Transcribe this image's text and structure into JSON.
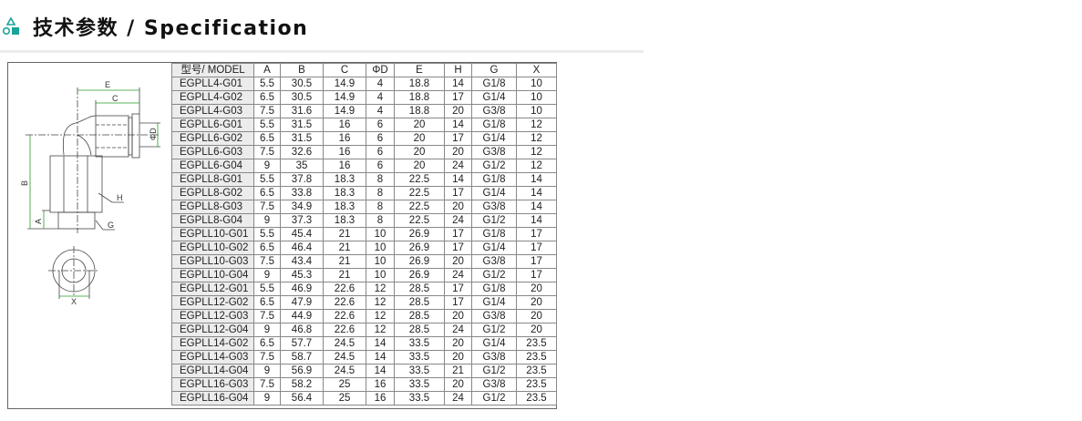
{
  "header": {
    "title": "技术参数 / Specification",
    "icon": "shapes-icon",
    "accent": "#1aa39a"
  },
  "table": {
    "columns": [
      "型号/ MODEL",
      "A",
      "B",
      "C",
      "ΦD",
      "E",
      "H",
      "G",
      "X"
    ],
    "rows": [
      [
        "EGPLL4-G01",
        "5.5",
        "30.5",
        "14.9",
        "4",
        "18.8",
        "14",
        "G1/8",
        "10"
      ],
      [
        "EGPLL4-G02",
        "6.5",
        "30.5",
        "14.9",
        "4",
        "18.8",
        "17",
        "G1/4",
        "10"
      ],
      [
        "EGPLL4-G03",
        "7.5",
        "31.6",
        "14.9",
        "4",
        "18.8",
        "20",
        "G3/8",
        "10"
      ],
      [
        "EGPLL6-G01",
        "5.5",
        "31.5",
        "16",
        "6",
        "20",
        "14",
        "G1/8",
        "12"
      ],
      [
        "EGPLL6-G02",
        "6.5",
        "31.5",
        "16",
        "6",
        "20",
        "17",
        "G1/4",
        "12"
      ],
      [
        "EGPLL6-G03",
        "7.5",
        "32.6",
        "16",
        "6",
        "20",
        "20",
        "G3/8",
        "12"
      ],
      [
        "EGPLL6-G04",
        "9",
        "35",
        "16",
        "6",
        "20",
        "24",
        "G1/2",
        "12"
      ],
      [
        "EGPLL8-G01",
        "5.5",
        "37.8",
        "18.3",
        "8",
        "22.5",
        "14",
        "G1/8",
        "14"
      ],
      [
        "EGPLL8-G02",
        "6.5",
        "33.8",
        "18.3",
        "8",
        "22.5",
        "17",
        "G1/4",
        "14"
      ],
      [
        "EGPLL8-G03",
        "7.5",
        "34.9",
        "18.3",
        "8",
        "22.5",
        "20",
        "G3/8",
        "14"
      ],
      [
        "EGPLL8-G04",
        "9",
        "37.3",
        "18.3",
        "8",
        "22.5",
        "24",
        "G1/2",
        "14"
      ],
      [
        "EGPLL10-G01",
        "5.5",
        "45.4",
        "21",
        "10",
        "26.9",
        "17",
        "G1/8",
        "17"
      ],
      [
        "EGPLL10-G02",
        "6.5",
        "46.4",
        "21",
        "10",
        "26.9",
        "17",
        "G1/4",
        "17"
      ],
      [
        "EGPLL10-G03",
        "7.5",
        "43.4",
        "21",
        "10",
        "26.9",
        "20",
        "G3/8",
        "17"
      ],
      [
        "EGPLL10-G04",
        "9",
        "45.3",
        "21",
        "10",
        "26.9",
        "24",
        "G1/2",
        "17"
      ],
      [
        "EGPLL12-G01",
        "5.5",
        "46.9",
        "22.6",
        "12",
        "28.5",
        "17",
        "G1/8",
        "20"
      ],
      [
        "EGPLL12-G02",
        "6.5",
        "47.9",
        "22.6",
        "12",
        "28.5",
        "17",
        "G1/4",
        "20"
      ],
      [
        "EGPLL12-G03",
        "7.5",
        "44.9",
        "22.6",
        "12",
        "28.5",
        "20",
        "G3/8",
        "20"
      ],
      [
        "EGPLL12-G04",
        "9",
        "46.8",
        "22.6",
        "12",
        "28.5",
        "24",
        "G1/2",
        "20"
      ],
      [
        "EGPLL14-G02",
        "6.5",
        "57.7",
        "24.5",
        "14",
        "33.5",
        "20",
        "G1/4",
        "23.5"
      ],
      [
        "EGPLL14-G03",
        "7.5",
        "58.7",
        "24.5",
        "14",
        "33.5",
        "20",
        "G3/8",
        "23.5"
      ],
      [
        "EGPLL14-G04",
        "9",
        "56.9",
        "24.5",
        "14",
        "33.5",
        "21",
        "G1/2",
        "23.5"
      ],
      [
        "EGPLL16-G03",
        "7.5",
        "58.2",
        "25",
        "16",
        "33.5",
        "20",
        "G3/8",
        "23.5"
      ],
      [
        "EGPLL16-G04",
        "9",
        "56.4",
        "25",
        "16",
        "33.5",
        "24",
        "G1/2",
        "23.5"
      ]
    ]
  },
  "drawing": {
    "labels": {
      "e": "E",
      "c": "C",
      "d": "ΦD",
      "b": "B",
      "a": "A",
      "h": "H",
      "g": "G",
      "x": "X"
    }
  }
}
